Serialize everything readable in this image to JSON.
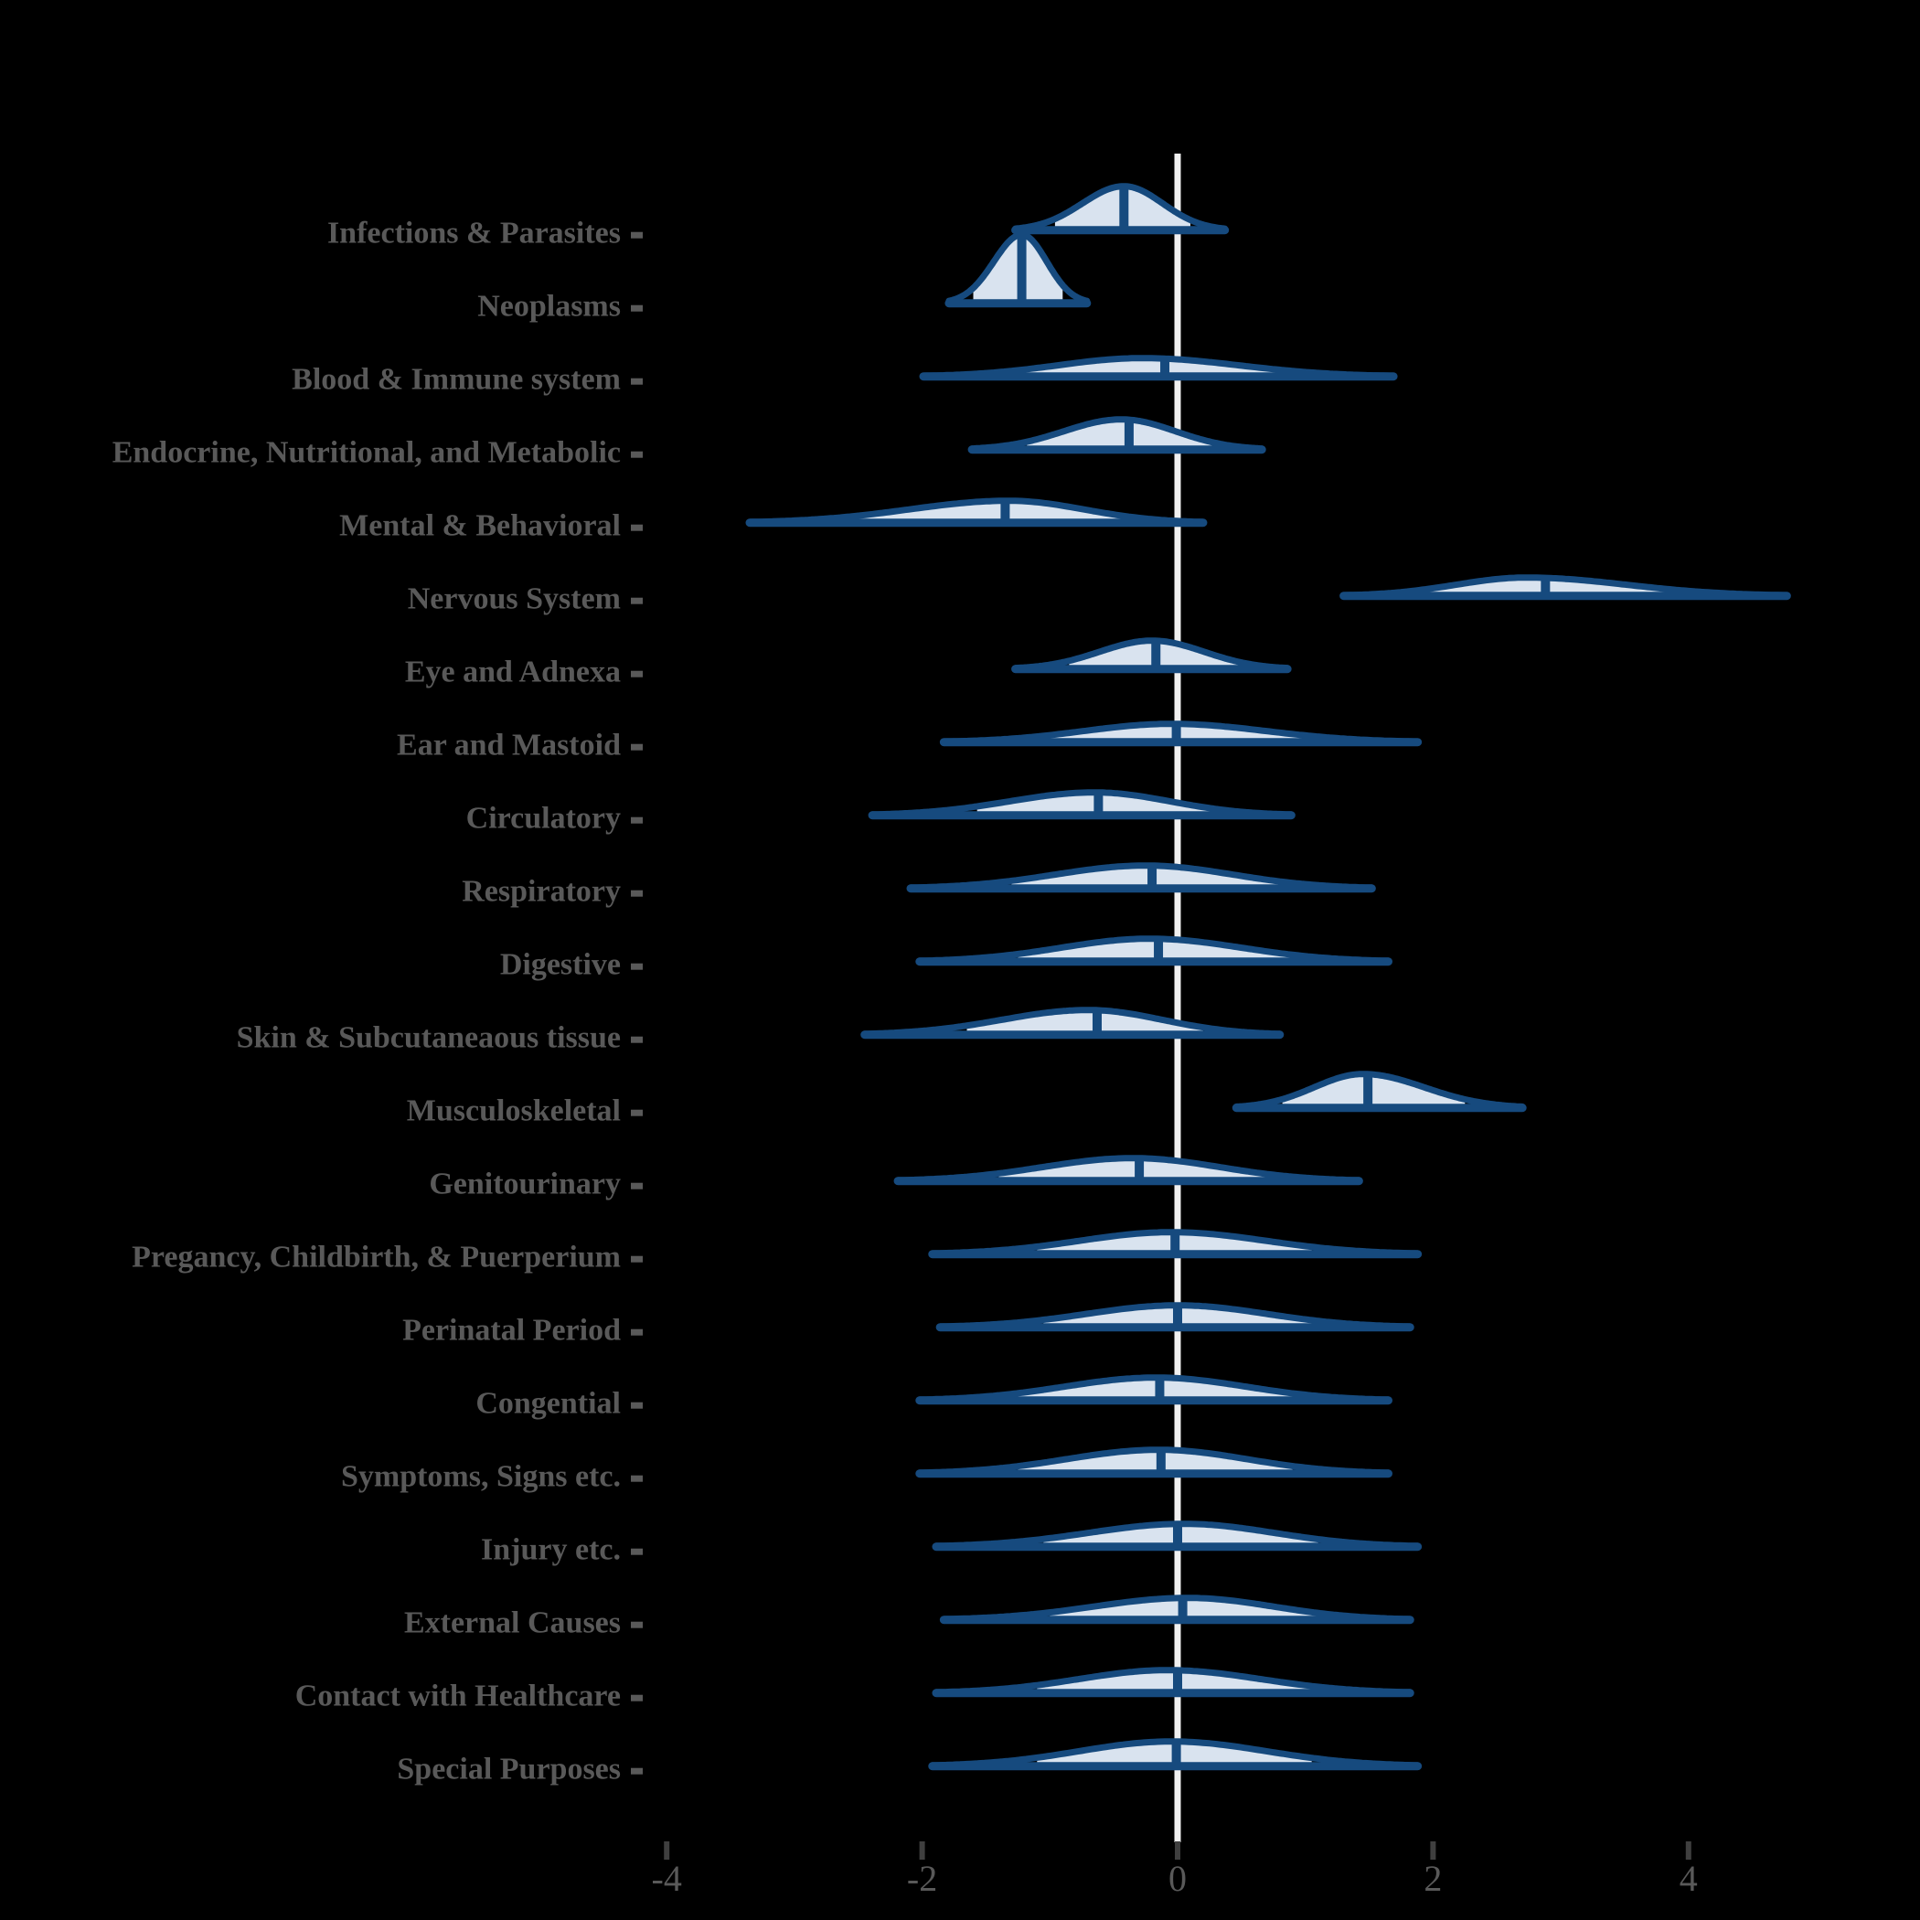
{
  "colors": {
    "background": "#000000",
    "violin_stroke": "#164a7e",
    "violin_fill": "#d9e3ef",
    "median_line": "#164a7e",
    "zero_line": "#f0f0f0",
    "category_label": "#595959",
    "axis_tick": "#3f3f3f",
    "axis_tick_label": "#595959"
  },
  "chart_data": {
    "type": "ridgeline-density",
    "title": "",
    "xlabel": "",
    "ylabel": "",
    "x_axis": {
      "tick_values": [
        -4,
        -2,
        0,
        2,
        4
      ],
      "tick_labels": [
        "-4",
        "-2",
        "0",
        "2",
        "4"
      ],
      "range": [
        -4.2,
        5.0
      ]
    },
    "zero_reference_line": 0,
    "legend": "none",
    "grid": "off",
    "categories": [
      "Infections & Parasites",
      "Neoplasms",
      "Blood & Immune system",
      "Endocrine, Nutritional, and Metabolic",
      "Mental & Behavioral",
      "Nervous System",
      "Eye and Adnexa",
      "Ear and Mastoid",
      "Circulatory",
      "Respiratory",
      "Digestive",
      "Skin & Subcutaneaous tissue",
      "Musculoskeletal",
      "Genitourinary",
      "Pregancy, Childbirth, & Puerperium",
      "Perinatal Period",
      "Congential",
      "Symptoms, Signs etc.",
      "Injury etc.",
      "External Causes",
      "Contact with Healthcare",
      "Special Purposes"
    ],
    "series": [
      {
        "name": "Infections & Parasites",
        "min": -1.27,
        "peak": -0.42,
        "median": -0.42,
        "max": 0.37,
        "fill_range": [
          -0.96,
          0.1
        ],
        "peak_height": 48
      },
      {
        "name": "Neoplasms",
        "min": -1.79,
        "peak": -1.22,
        "median": -1.22,
        "max": -0.71,
        "fill_range": [
          -1.6,
          -0.9
        ],
        "peak_height": 75
      },
      {
        "name": "Blood & Immune system",
        "min": -1.99,
        "peak": -0.28,
        "median": -0.1,
        "max": 1.69,
        "fill_range": [
          -1.29,
          1.02
        ],
        "peak_height": 20
      },
      {
        "name": "Endocrine, Nutritional, and Metabolic",
        "min": -1.61,
        "peak": -0.44,
        "median": -0.38,
        "max": 0.66,
        "fill_range": [
          -1.18,
          0.27
        ],
        "peak_height": 33
      },
      {
        "name": "Mental & Behavioral",
        "min": -3.35,
        "peak": -1.32,
        "median": -1.35,
        "max": 0.2,
        "fill_range": [
          -2.59,
          -0.35
        ],
        "peak_height": 24
      },
      {
        "name": "Nervous System",
        "min": 1.3,
        "peak": 2.73,
        "median": 2.88,
        "max": 4.77,
        "fill_range": [
          1.82,
          4.09
        ],
        "peak_height": 20
      },
      {
        "name": "Eye and Adnexa",
        "min": -1.27,
        "peak": -0.2,
        "median": -0.17,
        "max": 0.86,
        "fill_range": [
          -0.85,
          0.5
        ],
        "peak_height": 31
      },
      {
        "name": "Ear and Mastoid",
        "min": -1.83,
        "peak": -0.05,
        "median": -0.01,
        "max": 1.88,
        "fill_range": [
          -1.17,
          1.14
        ],
        "peak_height": 20
      },
      {
        "name": "Circulatory",
        "min": -2.39,
        "peak": -0.65,
        "median": -0.62,
        "max": 0.89,
        "fill_range": [
          -1.57,
          0.34
        ],
        "peak_height": 25
      },
      {
        "name": "Respiratory",
        "min": -2.09,
        "peak": -0.25,
        "median": -0.2,
        "max": 1.52,
        "fill_range": [
          -1.3,
          0.85
        ],
        "peak_height": 25
      },
      {
        "name": "Digestive",
        "min": -2.02,
        "peak": -0.22,
        "median": -0.15,
        "max": 1.65,
        "fill_range": [
          -1.25,
          0.9
        ],
        "peak_height": 25
      },
      {
        "name": "Skin & Subcutaneaous tissue",
        "min": -2.45,
        "peak": -0.7,
        "median": -0.63,
        "max": 0.8,
        "fill_range": [
          -1.65,
          0.2
        ],
        "peak_height": 27
      },
      {
        "name": "Musculoskeletal",
        "min": 0.46,
        "peak": 1.45,
        "median": 1.49,
        "max": 2.7,
        "fill_range": [
          0.82,
          2.25
        ],
        "peak_height": 37
      },
      {
        "name": "Genitourinary",
        "min": -2.19,
        "peak": -0.35,
        "median": -0.3,
        "max": 1.42,
        "fill_range": [
          -1.4,
          0.75
        ],
        "peak_height": 25
      },
      {
        "name": "Pregancy, Childbirth, & Puerperium",
        "min": -1.92,
        "peak": -0.05,
        "median": -0.02,
        "max": 1.88,
        "fill_range": [
          -1.1,
          1.05
        ],
        "peak_height": 24
      },
      {
        "name": "Perinatal Period",
        "min": -1.86,
        "peak": 0.0,
        "median": 0.0,
        "max": 1.82,
        "fill_range": [
          -1.05,
          1.05
        ],
        "peak_height": 24
      },
      {
        "name": "Congential",
        "min": -2.02,
        "peak": -0.17,
        "median": -0.14,
        "max": 1.65,
        "fill_range": [
          -1.25,
          0.9
        ],
        "peak_height": 25
      },
      {
        "name": "Symptoms, Signs etc.",
        "min": -2.02,
        "peak": -0.15,
        "median": -0.13,
        "max": 1.65,
        "fill_range": [
          -1.25,
          0.9
        ],
        "peak_height": 26
      },
      {
        "name": "Injury etc.",
        "min": -1.89,
        "peak": 0.05,
        "median": 0.0,
        "max": 1.88,
        "fill_range": [
          -1.05,
          1.1
        ],
        "peak_height": 25
      },
      {
        "name": "External Causes",
        "min": -1.83,
        "peak": 0.08,
        "median": 0.04,
        "max": 1.82,
        "fill_range": [
          -1.0,
          1.1
        ],
        "peak_height": 24
      },
      {
        "name": "Contact with Healthcare",
        "min": -1.89,
        "peak": -0.08,
        "median": 0.0,
        "max": 1.82,
        "fill_range": [
          -1.1,
          1.05
        ],
        "peak_height": 25
      },
      {
        "name": "Special Purposes",
        "min": -1.92,
        "peak": -0.05,
        "median": -0.01,
        "max": 1.88,
        "fill_range": [
          -1.1,
          1.05
        ],
        "peak_height": 27
      }
    ]
  }
}
